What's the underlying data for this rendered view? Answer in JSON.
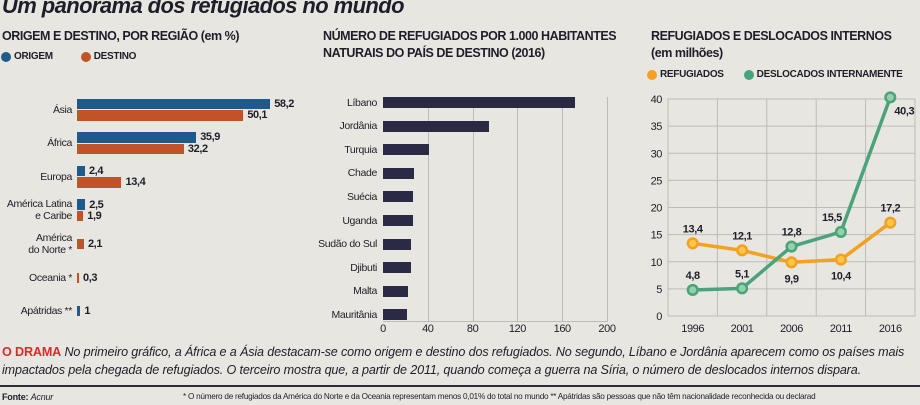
{
  "title": "Um panorama dos refugiados no mundo",
  "colors": {
    "background": "#e8e6e0",
    "text": "#1e1e2a",
    "highlight_red": "#e3262a",
    "gridline": "#bdbcb8"
  },
  "chart_data": [
    {
      "type": "bar",
      "orientation": "horizontal",
      "title": "ORIGEM E DESTINO, POR REGIÃO (em %)",
      "legend_position": "top-left",
      "grid": false,
      "xlabel": "",
      "ylabel": "",
      "categories": [
        "Ásia",
        "África",
        "Europa",
        "América Latina\ne Caribe",
        "América\ndo Norte *",
        "Oceania *",
        "Apátridas **"
      ],
      "series": [
        {
          "key": "origem",
          "name": "ORIGEM",
          "color": "#1f5a8a",
          "values": [
            58.2,
            35.9,
            2.4,
            2.5,
            null,
            null,
            1
          ],
          "labels": [
            "58,2",
            "35,9",
            "2,4",
            "2,5",
            null,
            null,
            "1"
          ]
        },
        {
          "key": "destino",
          "name": "DESTINO",
          "color": "#c05428",
          "values": [
            50.1,
            32.2,
            13.4,
            1.9,
            2.1,
            0.3,
            null
          ],
          "labels": [
            "50,1",
            "32,2",
            "13,4",
            "1,9",
            "2,1",
            "0,3",
            null
          ]
        }
      ]
    },
    {
      "type": "bar",
      "orientation": "horizontal",
      "title_lines": [
        "NÚMERO DE REFUGIADOS POR 1.000 HABITANTES",
        "NATURAIS DO PAÍS DE DESTINO (2016)"
      ],
      "grid": true,
      "xlabel": "",
      "ylabel": "",
      "xlim": [
        0,
        200
      ],
      "xticks": [
        0,
        40,
        80,
        120,
        160,
        200
      ],
      "xtick_labels": [
        "0",
        "40",
        "80",
        "120",
        "160",
        "200"
      ],
      "color": "#2a2a45",
      "categories": [
        "Líbano",
        "Jordânia",
        "Turquia",
        "Chade",
        "Suécia",
        "Uganda",
        "Sudão do Sul",
        "Djibuti",
        "Malta",
        "Mauritânia"
      ],
      "values": [
        171,
        95,
        41,
        28,
        27,
        27,
        25,
        25,
        22,
        21
      ]
    },
    {
      "type": "line",
      "title_lines": [
        "REFUGIADOS E DESLOCADOS INTERNOS",
        "(em milhões)"
      ],
      "legend_position": "top-left",
      "grid": true,
      "xlabel": "",
      "ylabel": "",
      "x": [
        "1996",
        "2001",
        "2006",
        "2011",
        "2016"
      ],
      "ylim": [
        0,
        40
      ],
      "yticks": [
        0,
        5,
        10,
        15,
        20,
        25,
        30,
        35,
        40
      ],
      "ytick_labels": [
        "0",
        "5",
        "10",
        "15",
        "20",
        "25",
        "30",
        "35",
        "40"
      ],
      "series": [
        {
          "key": "refugiados",
          "name": "REFUGIADOS",
          "color": "#f5a020",
          "marker_fill": "#fcc648",
          "values": [
            13.4,
            12.1,
            9.9,
            10.4,
            17.2
          ],
          "labels": [
            "13,4",
            "12,1",
            "9,9",
            "10,4",
            "17,2"
          ]
        },
        {
          "key": "deslocados",
          "name": "DESLOCADOS INTERNAMENTE",
          "color": "#4aa37a",
          "marker_fill": "#93d1ab",
          "values": [
            4.8,
            5.1,
            12.8,
            15.5,
            40.3
          ],
          "labels": [
            "4,8",
            "5,1",
            "12,8",
            "15,5",
            "40,3"
          ]
        }
      ]
    }
  ],
  "body": {
    "lead": "O DRAMA",
    "text": "No primeiro gráfico, a África e a Ásia destacam-se como origem e destino dos refugiados. No segundo, Líbano e Jordânia aparecem como os países mais impactados pela chegada de refugiados. O terceiro mostra que, a partir de 2011, quando começa a guerra na Síria, o número de deslocados internos dispara."
  },
  "footer": {
    "source_label": "Fonte: ",
    "source": "Acnur",
    "note": "* O número de refugiados da América do Norte e da Oceania representam menos 0,01% do total no mundo ** Apátridas são pessoas que não têm nacionalidade reconhecida ou declarad"
  }
}
